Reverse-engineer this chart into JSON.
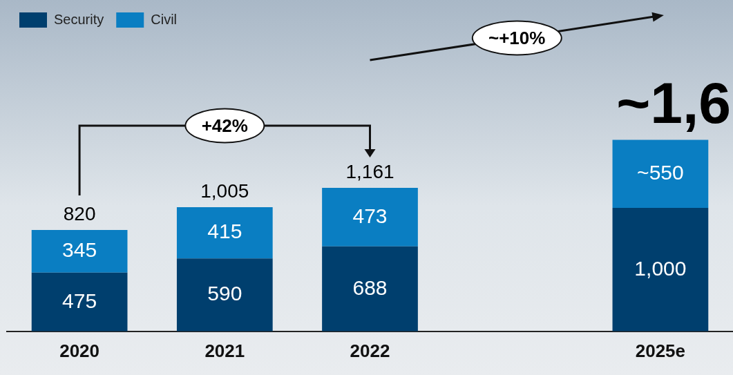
{
  "chart_data": {
    "type": "bar",
    "stacked": true,
    "legend": "top left",
    "grid": false,
    "categories": [
      "2020",
      "2021",
      "2022",
      null,
      "2025e"
    ],
    "series": [
      {
        "name": "Security",
        "color": "#003f6e",
        "values": [
          475,
          590,
          688,
          null,
          1000
        ],
        "value_labels": [
          "475",
          "590",
          "688",
          null,
          "1,000"
        ]
      },
      {
        "name": "Civil",
        "color": "#0a7ec2",
        "values": [
          345,
          415,
          473,
          null,
          550
        ],
        "value_labels": [
          "345",
          "415",
          "473",
          null,
          "~550"
        ]
      }
    ],
    "totals": [
      "820",
      "1,005",
      "1,161",
      null,
      null
    ],
    "annotations": [
      "+42%",
      "~+10%",
      {
        "text": "~1,6",
        "x": "2025e",
        "y": 1550
      }
    ]
  }
}
